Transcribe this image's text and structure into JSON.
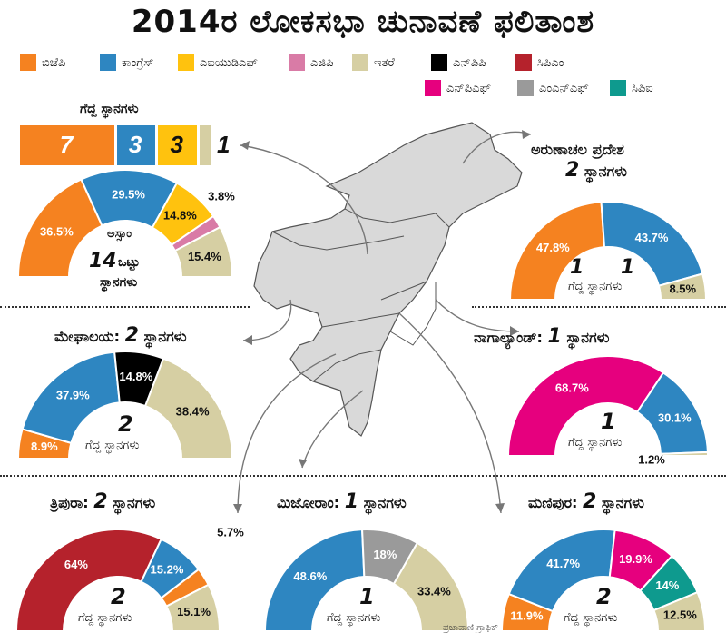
{
  "title": "2014ರ ಲೋಕಸಭಾ ಚುನಾವಣೆ ಫಲಿತಾಂಶ",
  "legend": [
    {
      "key": "bjp",
      "label": "ಬಿಜೆಪಿ",
      "color": "#F58220"
    },
    {
      "key": "congress",
      "label": "ಕಾಂಗ್ರೆಸ್",
      "color": "#2E86C1"
    },
    {
      "key": "aiudf",
      "label": "ಎಐಯುಡಿಎಫ್",
      "color": "#FFC20E"
    },
    {
      "key": "agp",
      "label": "ಎಜಿಪಿ",
      "color": "#D97BA6"
    },
    {
      "key": "others",
      "label": "ಇತರೆ",
      "color": "#D6CFA3"
    },
    {
      "key": "npp",
      "label": "ಎನ್‌ಪಿಪಿ",
      "color": "#000000"
    },
    {
      "key": "cpim",
      "label": "ಸಿಪಿಎಂ",
      "color": "#B5222C"
    },
    {
      "key": "npf",
      "label": "ಎನ್‌ಪಿಎಫ್",
      "color": "#E6007E"
    },
    {
      "key": "manf",
      "label": "ಎಂಎನ್‌ಎಫ್",
      "color": "#9A9A9A"
    },
    {
      "key": "cpi",
      "label": "ಸಿಪಿಐ",
      "color": "#0E9A8E"
    }
  ],
  "assam_seats": {
    "title": "ಗೆದ್ದ ಸ್ಥಾನಗಳು",
    "bars": [
      {
        "party": "bjp",
        "value": 7
      },
      {
        "party": "congress",
        "value": 3
      },
      {
        "party": "aiudf",
        "value": 3
      },
      {
        "party": "others",
        "value": 1
      }
    ]
  },
  "chart_data": [
    {
      "type": "pie",
      "name": "assam",
      "state": "ಅಸ್ಸಾಂ",
      "seats_total": "14",
      "seats_total_label": "ಒಟ್ಟು",
      "seats_label": "ಸ್ಥಾನಗಳು",
      "slices": [
        {
          "party": "bjp",
          "value": 36.5,
          "label": "36.5%"
        },
        {
          "party": "congress",
          "value": 29.5,
          "label": "29.5%"
        },
        {
          "party": "aiudf",
          "value": 14.8,
          "label": "14.8%"
        },
        {
          "party": "agp",
          "value": 3.8,
          "label": "3.8%"
        },
        {
          "party": "others",
          "value": 15.4,
          "label": "15.4%"
        }
      ]
    },
    {
      "type": "pie",
      "name": "arunachal",
      "title": "ಅರುಣಾಚಲ ಪ್ರದೇಶ",
      "seats": "2",
      "seats_label": "ಸ್ಥಾನಗಳು",
      "won_label": "ಗೆದ್ದ ಸ್ಥಾನಗಳು",
      "won": [
        "1",
        "1"
      ],
      "slices": [
        {
          "party": "bjp",
          "value": 47.8,
          "label": "47.8%"
        },
        {
          "party": "congress",
          "value": 43.7,
          "label": "43.7%"
        },
        {
          "party": "others",
          "value": 8.5,
          "label": "8.5%"
        }
      ]
    },
    {
      "type": "pie",
      "name": "meghalaya",
      "title": "ಮೇಘಾಲಯ:",
      "seats": "2",
      "seats_label": "ಸ್ಥಾನಗಳು",
      "won_label": "ಗೆದ್ದ ಸ್ಥಾನಗಳು",
      "won": [
        "2"
      ],
      "slices": [
        {
          "party": "bjp",
          "value": 8.9,
          "label": "8.9%"
        },
        {
          "party": "congress",
          "value": 37.9,
          "label": "37.9%"
        },
        {
          "party": "npp",
          "value": 14.8,
          "label": "14.8%"
        },
        {
          "party": "others",
          "value": 38.4,
          "label": "38.4%"
        }
      ]
    },
    {
      "type": "pie",
      "name": "nagaland",
      "title": "ನಾಗಾಲ್ಯಾಂಡ್:",
      "seats": "1",
      "seats_label": "ಸ್ಥಾನಗಳು",
      "won_label": "ಗೆದ್ದ ಸ್ಥಾನಗಳು",
      "won": [
        "1"
      ],
      "slices": [
        {
          "party": "npf",
          "value": 68.7,
          "label": "68.7%"
        },
        {
          "party": "congress",
          "value": 30.1,
          "label": "30.1%"
        },
        {
          "party": "others",
          "value": 1.2,
          "label": "1.2%"
        }
      ]
    },
    {
      "type": "pie",
      "name": "tripura",
      "title": "ತ್ರಿಪುರಾ:",
      "seats": "2",
      "seats_label": "ಸ್ಥಾನಗಳು",
      "won_label": "ಗೆದ್ದ ಸ್ಥಾನಗಳು",
      "won": [
        "2"
      ],
      "slices": [
        {
          "party": "cpim",
          "value": 64,
          "label": "64%"
        },
        {
          "party": "congress",
          "value": 15.2,
          "label": "15.2%"
        },
        {
          "party": "bjp",
          "value": 5.7,
          "label": "5.7%"
        },
        {
          "party": "others",
          "value": 15.1,
          "label": "15.1%"
        }
      ]
    },
    {
      "type": "pie",
      "name": "mizoram",
      "title": "ಮಿಜೋರಾಂ:",
      "seats": "1",
      "seats_label": "ಸ್ಥಾನಗಳು",
      "won_label": "ಗೆದ್ದ ಸ್ಥಾನಗಳು",
      "won": [
        "1"
      ],
      "slices": [
        {
          "party": "congress",
          "value": 48.6,
          "label": "48.6%"
        },
        {
          "party": "manf",
          "value": 18,
          "label": "18%"
        },
        {
          "party": "others",
          "value": 33.4,
          "label": "33.4%"
        }
      ]
    },
    {
      "type": "pie",
      "name": "manipur",
      "title": "ಮಣಿಪುರ:",
      "seats": "2",
      "seats_label": "ಸ್ಥಾನಗಳು",
      "won_label": "ಗೆದ್ದ ಸ್ಥಾನಗಳು",
      "won": [
        "2"
      ],
      "slices": [
        {
          "party": "bjp",
          "value": 11.9,
          "label": "11.9%"
        },
        {
          "party": "congress",
          "value": 41.7,
          "label": "41.7%"
        },
        {
          "party": "npf",
          "value": 19.9,
          "label": "19.9%"
        },
        {
          "party": "cpi",
          "value": 14,
          "label": "14%"
        },
        {
          "party": "others",
          "value": 12.5,
          "label": "12.5%"
        }
      ]
    }
  ],
  "credit": "ಪ್ರಜಾವಾಣಿ ಗ್ರಾಫಿಕ್"
}
